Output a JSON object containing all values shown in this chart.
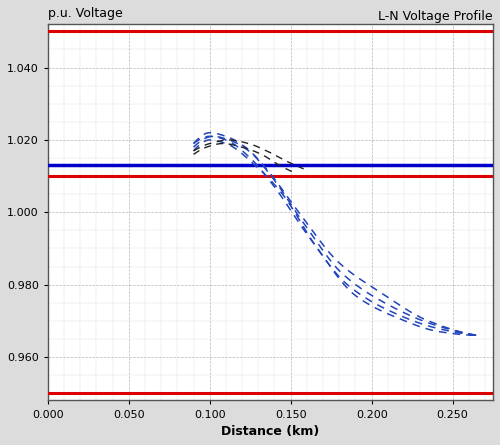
{
  "title": "L-N Voltage Profile",
  "ylabel": "p.u. Voltage",
  "xlabel": "Distance (km)",
  "xlim": [
    0.0,
    0.275
  ],
  "ylim": [
    0.948,
    1.052
  ],
  "yticks": [
    0.96,
    0.98,
    1.0,
    1.02,
    1.04
  ],
  "xticks": [
    0.0,
    0.05,
    0.1,
    0.15,
    0.2,
    0.25
  ],
  "red_lines": [
    1.05,
    1.01,
    0.95
  ],
  "blue_line": 1.013,
  "bg_color": "#dcdcdc",
  "plot_bg_color": "#ffffff",
  "grid_color": "#888888",
  "red_color": "#dd0000",
  "blue_color": "#0000cc",
  "dashed_blue_color": "#2244bb",
  "dashed_black_color": "#222222"
}
